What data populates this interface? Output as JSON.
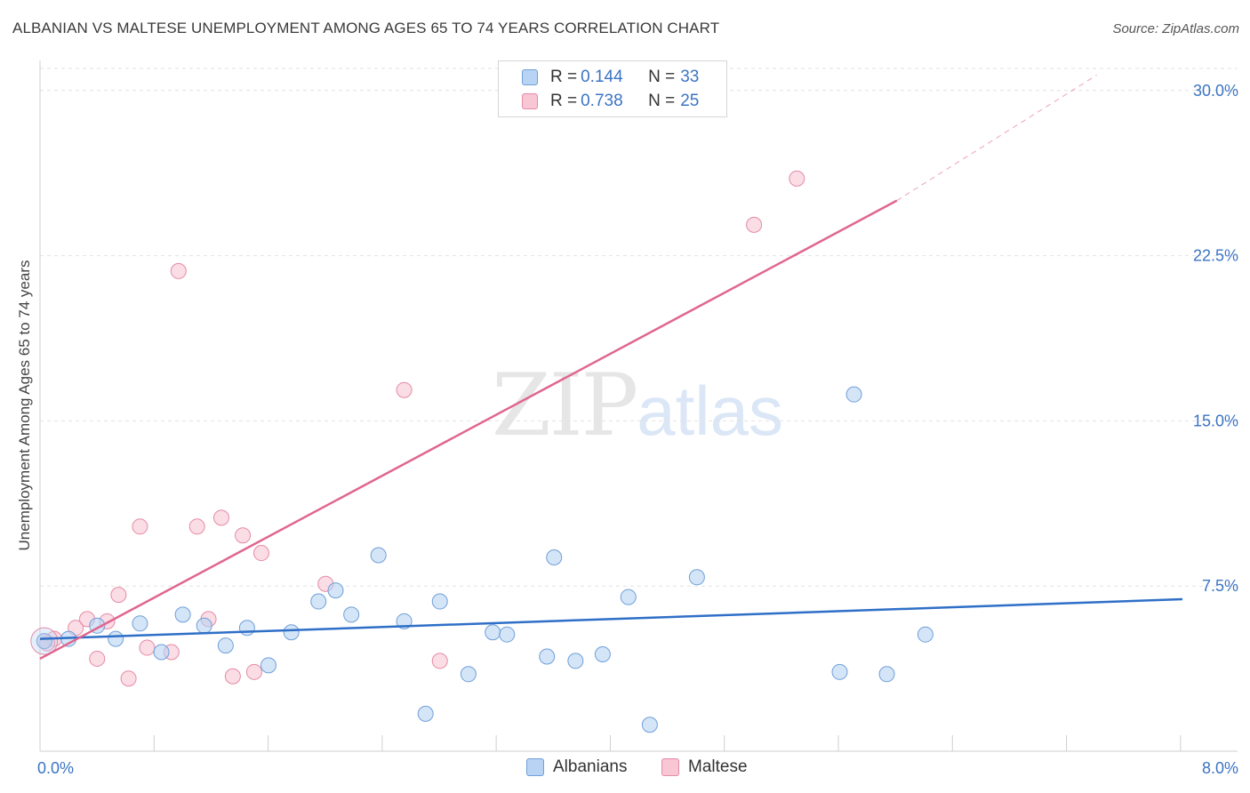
{
  "header": {
    "title": "ALBANIAN VS MALTESE UNEMPLOYMENT AMONG AGES 65 TO 74 YEARS CORRELATION CHART",
    "source": "Source: ZipAtlas.com"
  },
  "watermark": {
    "zip": "ZIP",
    "atlas": "atlas"
  },
  "legend": {
    "albanian": {
      "r_label": "R =",
      "r_value": "0.144",
      "n_label": "N =",
      "n_value": "33"
    },
    "maltese": {
      "r_label": "R =",
      "r_value": "0.738",
      "n_label": "N =",
      "n_value": "25"
    }
  },
  "bottom_legend": {
    "albanians": "Albanians",
    "maltese": "Maltese"
  },
  "colors": {
    "albanian_fill": "#b8d3f3",
    "albanian_stroke": "#6f9fd8",
    "albanian_line": "#2f6fc7",
    "maltese_fill": "#f8c6d5",
    "maltese_stroke": "#e58aa6",
    "maltese_line": "#e0668f",
    "tick_text": "#3b74c4",
    "grid": "#e2e2e2"
  },
  "chart_data": {
    "type": "scatter",
    "title": "ALBANIAN VS MALTESE UNEMPLOYMENT AMONG AGES 65 TO 74 YEARS CORRELATION CHART",
    "xlabel": "",
    "ylabel": "Unemployment Among Ages 65 to 74 years",
    "xlim": [
      0,
      8
    ],
    "ylim": [
      0,
      31
    ],
    "x_tick_labels": [
      "0.0%",
      "8.0%"
    ],
    "y_ticks": [
      7.5,
      15.0,
      22.5,
      30.0
    ],
    "y_tick_labels": [
      "7.5%",
      "15.0%",
      "22.5%",
      "30.0%"
    ],
    "grid": true,
    "series": [
      {
        "name": "Albanians",
        "r": 0.144,
        "n": 33,
        "trend": {
          "x": [
            0,
            8
          ],
          "y": [
            5.1,
            6.9
          ]
        },
        "points": [
          {
            "x": 0.03,
            "y": 5.0
          },
          {
            "x": 0.2,
            "y": 5.1
          },
          {
            "x": 0.4,
            "y": 5.7
          },
          {
            "x": 0.53,
            "y": 5.1
          },
          {
            "x": 0.7,
            "y": 5.8
          },
          {
            "x": 0.85,
            "y": 4.5
          },
          {
            "x": 1.0,
            "y": 6.2
          },
          {
            "x": 1.15,
            "y": 5.7
          },
          {
            "x": 1.3,
            "y": 4.8
          },
          {
            "x": 1.45,
            "y": 5.6
          },
          {
            "x": 1.6,
            "y": 3.9
          },
          {
            "x": 1.76,
            "y": 5.4
          },
          {
            "x": 1.95,
            "y": 6.8
          },
          {
            "x": 2.07,
            "y": 7.3
          },
          {
            "x": 2.18,
            "y": 6.2
          },
          {
            "x": 2.37,
            "y": 8.9
          },
          {
            "x": 2.55,
            "y": 5.9
          },
          {
            "x": 2.7,
            "y": 1.7
          },
          {
            "x": 2.8,
            "y": 6.8
          },
          {
            "x": 3.0,
            "y": 3.5
          },
          {
            "x": 3.17,
            "y": 5.4
          },
          {
            "x": 3.27,
            "y": 5.3
          },
          {
            "x": 3.55,
            "y": 4.3
          },
          {
            "x": 3.6,
            "y": 8.8
          },
          {
            "x": 3.75,
            "y": 4.1
          },
          {
            "x": 3.94,
            "y": 4.4
          },
          {
            "x": 4.12,
            "y": 7.0
          },
          {
            "x": 4.27,
            "y": 1.2
          },
          {
            "x": 4.6,
            "y": 7.9
          },
          {
            "x": 5.6,
            "y": 3.6
          },
          {
            "x": 5.7,
            "y": 16.2
          },
          {
            "x": 5.93,
            "y": 3.5
          },
          {
            "x": 6.2,
            "y": 5.3
          }
        ]
      },
      {
        "name": "Maltese",
        "r": 0.738,
        "n": 25,
        "trend": {
          "x": [
            0,
            6
          ],
          "y": [
            4.2,
            25.0
          ],
          "dashed_to": {
            "x": 7.4,
            "y": 30.7
          }
        },
        "points": [
          {
            "x": 0.03,
            "y": 5.0
          },
          {
            "x": 0.1,
            "y": 5.1
          },
          {
            "x": 0.25,
            "y": 5.6
          },
          {
            "x": 0.33,
            "y": 6.0
          },
          {
            "x": 0.4,
            "y": 4.2
          },
          {
            "x": 0.47,
            "y": 5.9
          },
          {
            "x": 0.55,
            "y": 7.1
          },
          {
            "x": 0.62,
            "y": 3.3
          },
          {
            "x": 0.7,
            "y": 10.2
          },
          {
            "x": 0.75,
            "y": 4.7
          },
          {
            "x": 0.92,
            "y": 4.5
          },
          {
            "x": 0.97,
            "y": 21.8
          },
          {
            "x": 1.1,
            "y": 10.2
          },
          {
            "x": 1.18,
            "y": 6.0
          },
          {
            "x": 1.27,
            "y": 10.6
          },
          {
            "x": 1.35,
            "y": 3.4
          },
          {
            "x": 1.42,
            "y": 9.8
          },
          {
            "x": 1.5,
            "y": 3.6
          },
          {
            "x": 1.55,
            "y": 9.0
          },
          {
            "x": 2.0,
            "y": 7.6
          },
          {
            "x": 2.55,
            "y": 16.4
          },
          {
            "x": 2.8,
            "y": 4.1
          },
          {
            "x": 5.0,
            "y": 23.9
          },
          {
            "x": 5.3,
            "y": 26.0
          },
          {
            "x": 0.05,
            "y": 4.9
          }
        ]
      }
    ]
  }
}
